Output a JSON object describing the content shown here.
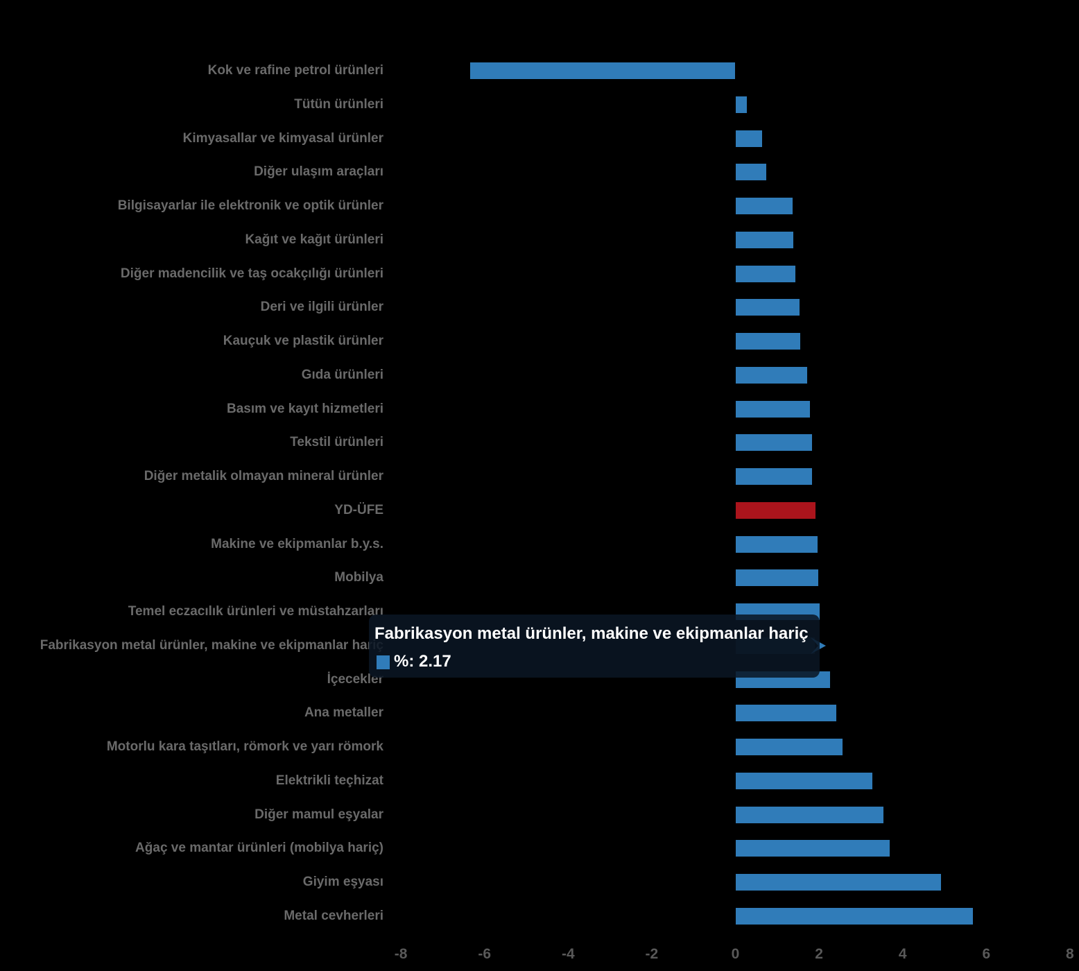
{
  "chart_data": {
    "type": "bar",
    "orientation": "horizontal",
    "title": "",
    "xlabel": "",
    "ylabel": "",
    "unit": "%",
    "grid": false,
    "legend": "none",
    "xlim": [
      -8,
      8
    ],
    "x_ticks": [
      "-8",
      "-6",
      "-4",
      "-2",
      "0",
      "2",
      "4",
      "6",
      "8"
    ],
    "x_tick_values": [
      -8,
      -6,
      -4,
      -2,
      0,
      2,
      4,
      6,
      8
    ],
    "categories": [
      "Kok ve rafine petrol ürünleri",
      "Tütün ürünleri",
      "Kimyasallar ve kimyasal ürünler",
      "Diğer ulaşım araçları",
      "Bilgisayarlar ile elektronik ve optik ürünler",
      "Kağıt ve kağıt ürünleri",
      "Diğer madencilik ve taş ocakçılığı ürünleri",
      "Deri ve ilgili ürünler",
      "Kauçuk ve plastik ürünler",
      "Gıda ürünleri",
      "Basım ve kayıt hizmetleri",
      "Tekstil ürünleri",
      "Diğer metalik olmayan mineral ürünler",
      "YD-ÜFE",
      "Makine ve ekipmanlar b.y.s.",
      "Mobilya",
      "Temel eczacılık ürünleri ve müstahzarları",
      "Fabrikasyon metal ürünler, makine ve ekipmanlar hariç",
      "İçecekler",
      "Ana metaller",
      "Motorlu kara taşıtları, römork ve yarı römork",
      "Elektrikli teçhizat",
      "Diğer mamul eşyalar",
      "Ağaç ve mantar ürünleri (mobilya hariç)",
      "Giyim eşyası",
      "Metal cevherleri"
    ],
    "values": [
      -6.35,
      0.27,
      0.64,
      0.73,
      1.37,
      1.39,
      1.44,
      1.54,
      1.55,
      1.71,
      1.78,
      1.83,
      1.84,
      1.92,
      1.96,
      1.98,
      2.01,
      2.17,
      2.27,
      2.41,
      2.57,
      3.27,
      3.54,
      3.69,
      4.91,
      5.68
    ],
    "bar_color": "#307cb9",
    "red_series_name": "YD-ÜFE",
    "red_index": 13,
    "red_color": "#ab141c",
    "hovered_index": 17,
    "hover_bar_color": "#0e2434"
  },
  "tooltip": {
    "title": "Fabrikasyon metal ürünler, makine ve ekipmanlar hariç",
    "value_label": "%: 2.17",
    "swatch_color": "#307cb9"
  }
}
